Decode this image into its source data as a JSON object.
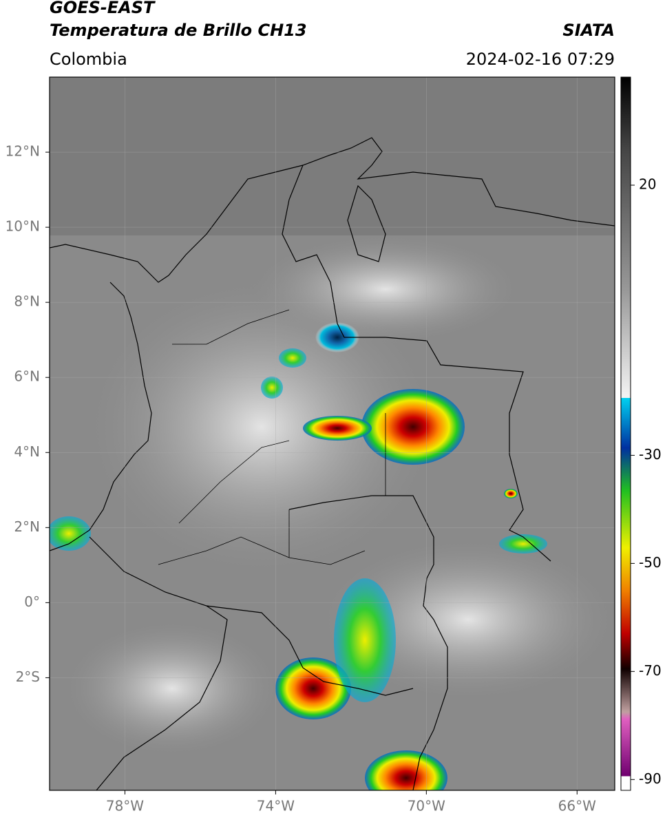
{
  "header": {
    "title": "GOES-EAST",
    "subtitle": "Temperatura de Brillo CH13",
    "source": "SIATA",
    "region": "Colombia",
    "datetime": "2024-02-16 07:29"
  },
  "map": {
    "xlim": [
      -80,
      -65
    ],
    "ylim": [
      -5,
      14
    ],
    "xticks": [
      {
        "value": -78,
        "label": "78°W"
      },
      {
        "value": -74,
        "label": "74°W"
      },
      {
        "value": -70,
        "label": "70°W"
      },
      {
        "value": -66,
        "label": "66°W"
      }
    ],
    "yticks": [
      {
        "value": 12,
        "label": "12°N"
      },
      {
        "value": 10,
        "label": "10°N"
      },
      {
        "value": 8,
        "label": "8°N"
      },
      {
        "value": 6,
        "label": "6°N"
      },
      {
        "value": 4,
        "label": "4°N"
      },
      {
        "value": 2,
        "label": "2°N"
      },
      {
        "value": 0,
        "label": "0°"
      },
      {
        "value": -2,
        "label": "2°S"
      }
    ],
    "grid": true
  },
  "colorbar": {
    "lim": [
      -92,
      40
    ],
    "ticks": [
      20,
      -30,
      -50,
      -70,
      -90
    ]
  }
}
